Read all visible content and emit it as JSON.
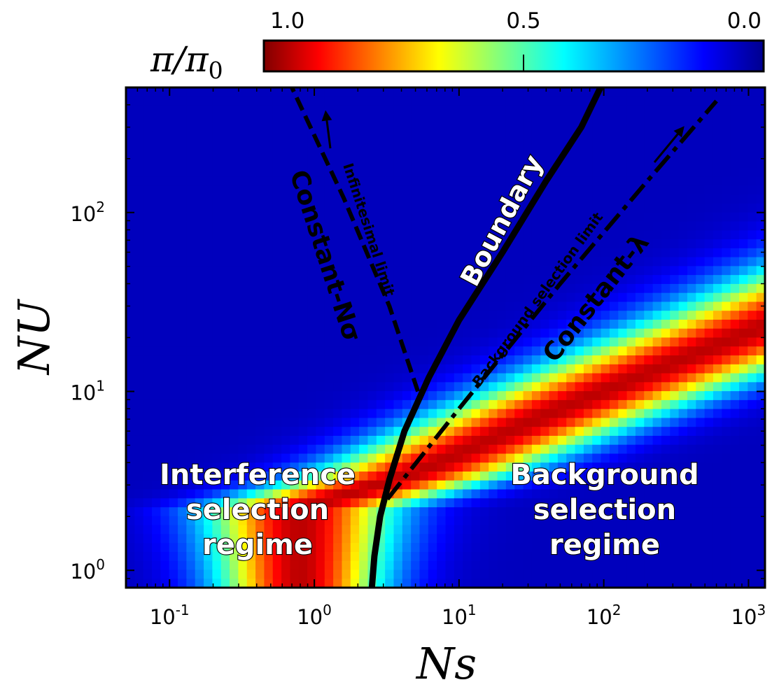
{
  "chart_data": {
    "type": "heatmap",
    "x_axis": {
      "label": "Ns",
      "scale": "log",
      "range": [
        0.05,
        1300
      ],
      "tick_values": [
        0.1,
        1,
        10,
        100,
        1000
      ],
      "tick_labels": [
        {
          "base": "10",
          "exp": "-1"
        },
        {
          "base": "10",
          "exp": "0"
        },
        {
          "base": "10",
          "exp": "1"
        },
        {
          "base": "10",
          "exp": "2"
        },
        {
          "base": "10",
          "exp": "3"
        }
      ]
    },
    "y_axis": {
      "label": "NU",
      "scale": "log",
      "range": [
        0.8,
        500
      ],
      "tick_values": [
        1,
        10,
        100
      ],
      "tick_labels": [
        {
          "base": "10",
          "exp": "0"
        },
        {
          "base": "10",
          "exp": "1"
        },
        {
          "base": "10",
          "exp": "2"
        }
      ]
    },
    "colorbar": {
      "title": {
        "base": "π/π",
        "sub": "0"
      },
      "tick_labels": [
        "1.0",
        "0.5",
        "0.0"
      ],
      "tick_values": [
        1.0,
        0.5,
        0.0
      ],
      "colormap": "jet",
      "reversed": true,
      "range": [
        1.0,
        0.0
      ]
    },
    "heatmap_model": {
      "description_free_model": true,
      "grid": {
        "nx": 74,
        "ny": 56
      },
      "ridge_knots": [
        [
          0.8,
          2.2
        ],
        [
          5,
          3.5
        ],
        [
          50,
          8
        ],
        [
          500,
          17
        ]
      ],
      "log_width_base": 0.55,
      "log_width_slope": 0.22
    },
    "curves": [
      {
        "name": "Boundary",
        "style": "solid",
        "points": [
          [
            2.5,
            0.8
          ],
          [
            2.6,
            1.2
          ],
          [
            2.85,
            2
          ],
          [
            3.3,
            3.2
          ],
          [
            4.2,
            6
          ],
          [
            6.2,
            12
          ],
          [
            10,
            25
          ],
          [
            20,
            60
          ],
          [
            40,
            150
          ],
          [
            70,
            300
          ],
          [
            95,
            500
          ]
        ]
      },
      {
        "name": "Constant-Nσ",
        "style": "dashed",
        "points": [
          [
            5.2,
            10
          ],
          [
            3.3,
            30
          ],
          [
            1.6,
            120
          ],
          [
            0.7,
            500
          ]
        ]
      },
      {
        "name": "Constant-λ",
        "style": "dashdot",
        "points": [
          [
            3.2,
            2.5
          ],
          [
            10,
            8
          ],
          [
            50,
            40
          ],
          [
            200,
            150
          ],
          [
            600,
            420
          ]
        ]
      }
    ],
    "annotations": [
      {
        "text": "Boundary",
        "kind": "curve"
      },
      {
        "text": "Constant-Nσ",
        "kind": "curve"
      },
      {
        "text": "Constant-λ",
        "kind": "curve"
      },
      {
        "text": "Infinitesimal limit",
        "kind": "limit"
      },
      {
        "text": "Background selection limit",
        "kind": "limit"
      }
    ],
    "regions": [
      {
        "lines": [
          "Interference",
          "selection",
          "regime"
        ]
      },
      {
        "lines": [
          "Background",
          "selection",
          "regime"
        ]
      }
    ]
  }
}
